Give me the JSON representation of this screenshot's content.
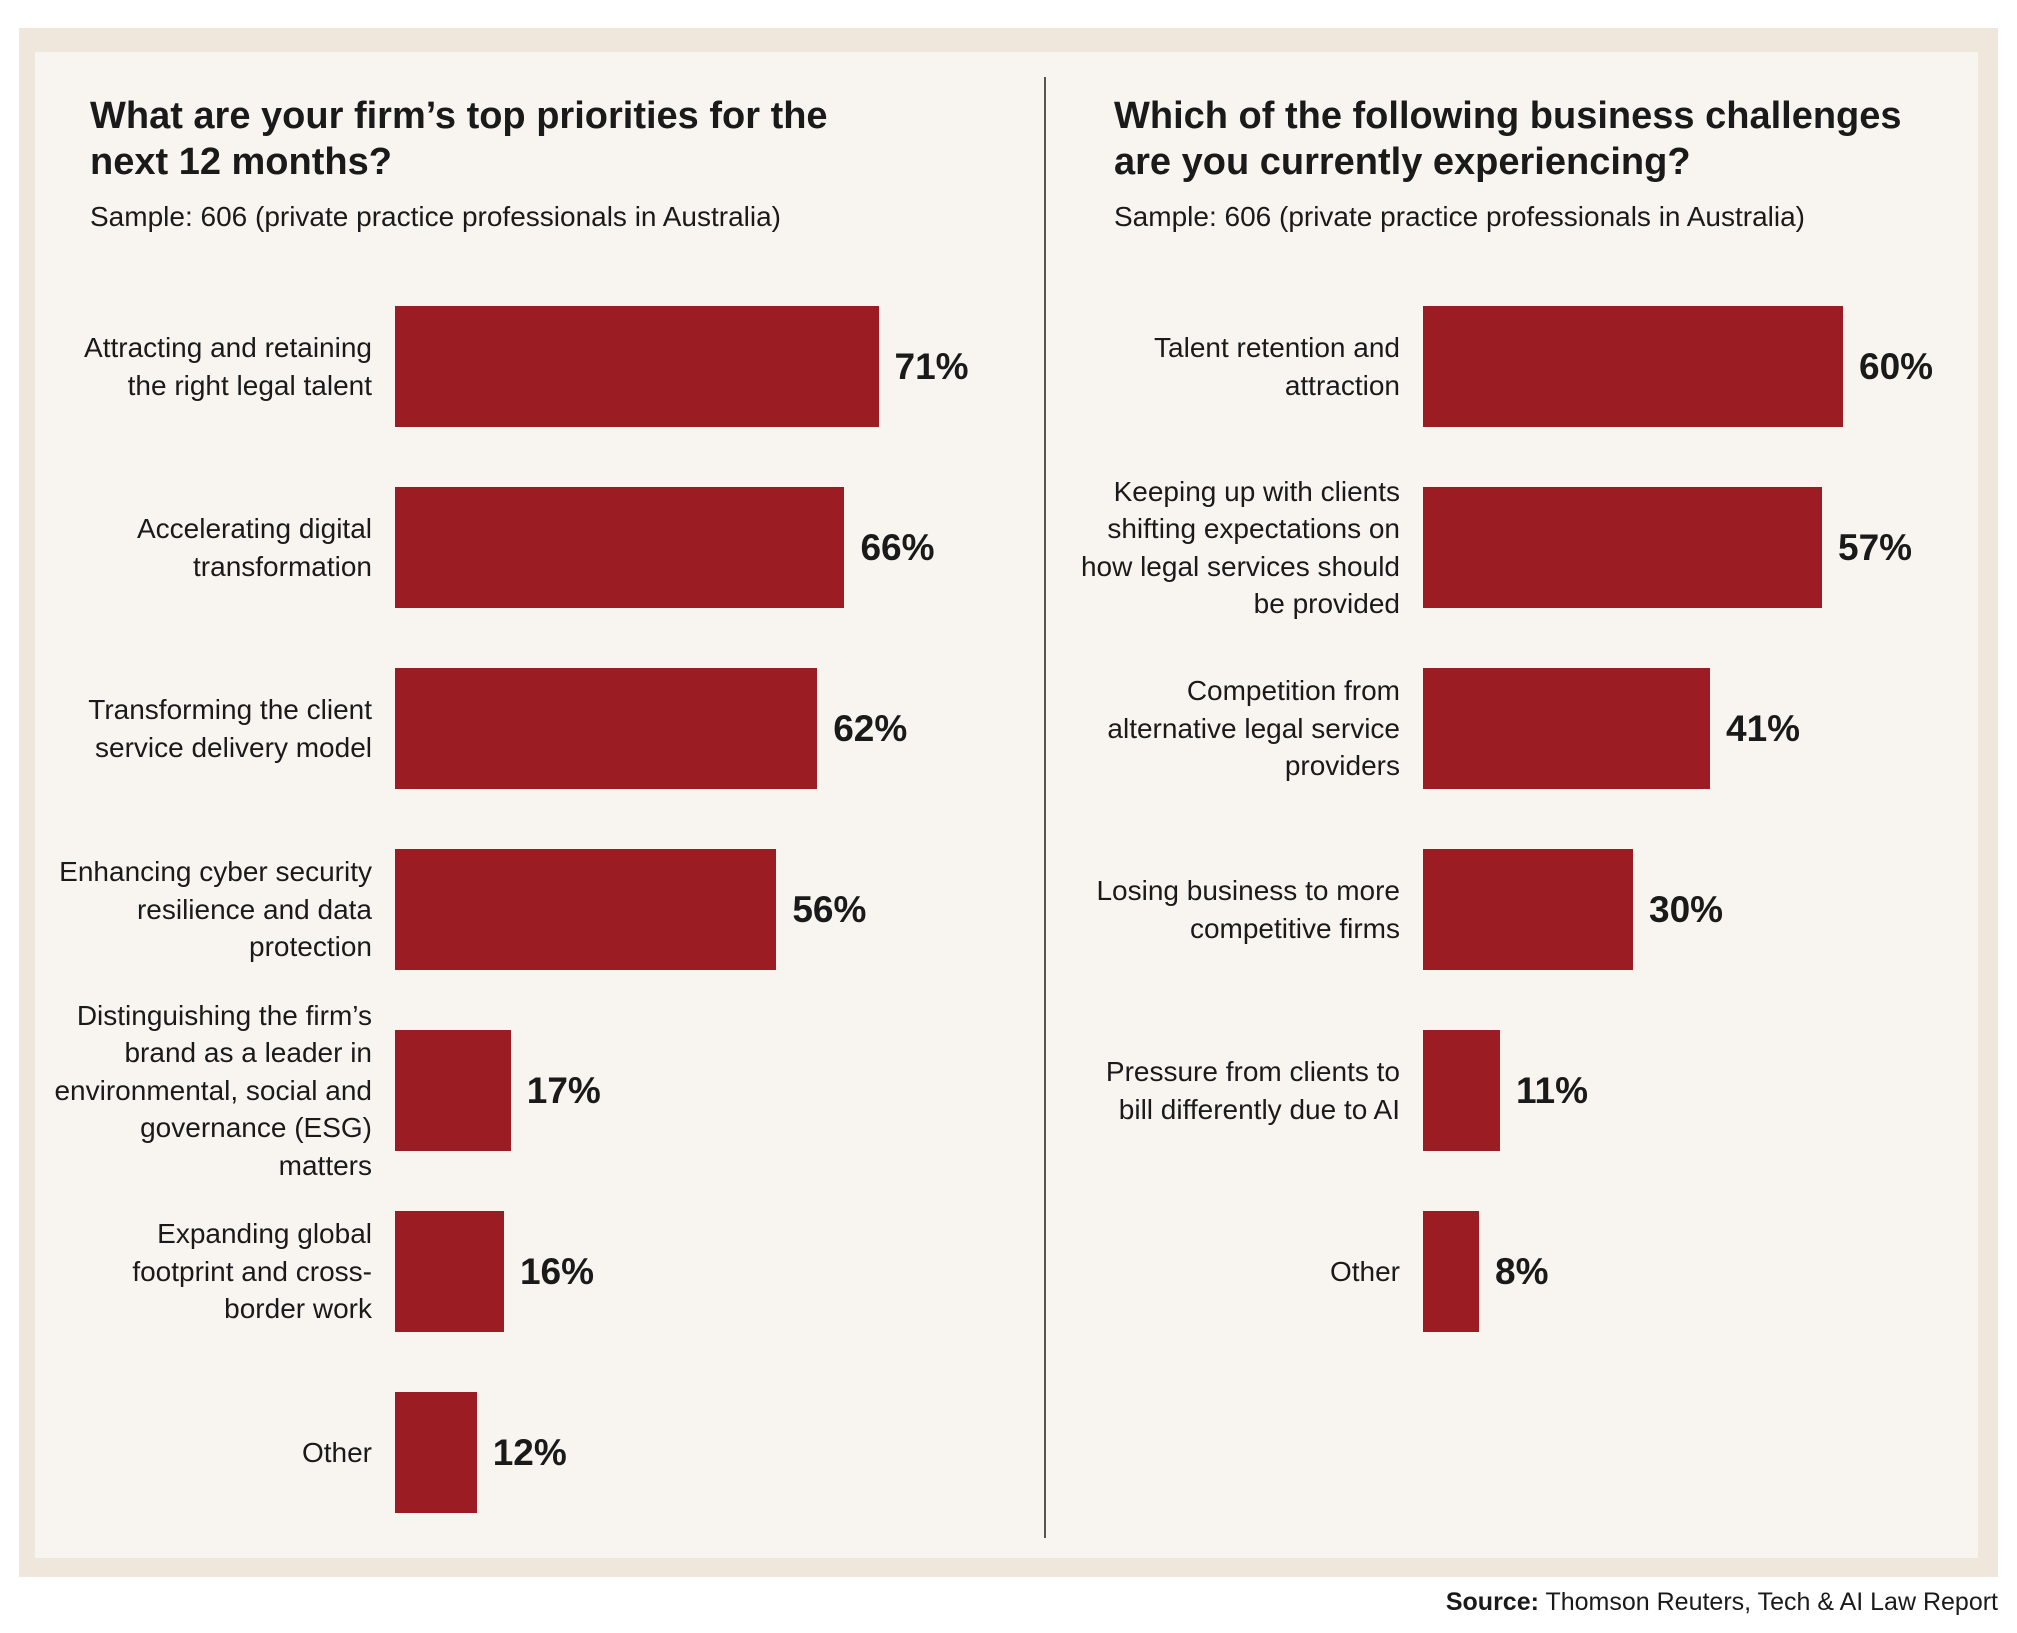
{
  "chart_data": [
    {
      "type": "bar",
      "title": "What are your firm’s top priorities for the next 12 months?",
      "subtitle": "Sample: 606 (private practice professionals in Australia)",
      "color": "#9b1c22",
      "categories": [
        "Attracting and retaining the right legal talent",
        "Accelerating digital transformation",
        "Transforming the client service delivery model",
        "Enhancing cyber security resilience and data protection",
        "Distinguishing the firm’s brand as a leader in environmental, social and governance (ESG) matters",
        "Expanding global footprint and cross-border work",
        "Other"
      ],
      "values": [
        71,
        66,
        62,
        56,
        17,
        16,
        12
      ],
      "value_labels": [
        "71%",
        "66%",
        "62%",
        "56%",
        "17%",
        "16%",
        "12%"
      ]
    },
    {
      "type": "bar",
      "title": "Which of the following business challenges are you currently experiencing?",
      "subtitle": "Sample: 606 (private practice professionals in Australia)",
      "color": "#9b1c22",
      "categories": [
        "Talent retention and attraction",
        "Keeping up with clients shifting expectations on how legal services should be provided",
        "Competition from alternative legal service providers",
        "Losing business to more competitive firms",
        "Pressure from clients to bill differently due to AI",
        "Other"
      ],
      "values": [
        60,
        57,
        41,
        30,
        11,
        8
      ],
      "value_labels": [
        "60%",
        "57%",
        "41%",
        "30%",
        "11%",
        "8%"
      ]
    }
  ],
  "source": {
    "label": "Source:",
    "text": "Thomson Reuters, Tech & AI Law Report"
  }
}
